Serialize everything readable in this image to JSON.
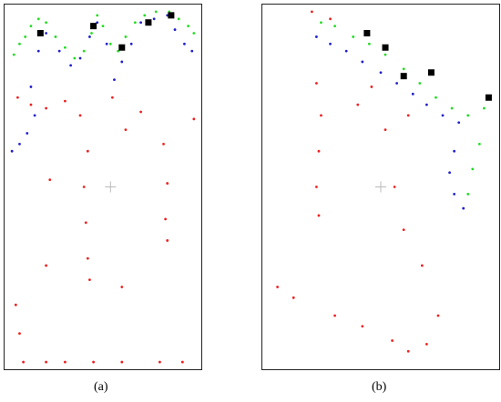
{
  "chart_data": [
    {
      "type": "scatter",
      "panel_label": "(a)",
      "grid": false,
      "legend": "none",
      "colors": {
        "green": "#22dd22",
        "blue": "#2222cc",
        "red": "#ee2222",
        "marker": "#000000",
        "center": "#bbbbbb"
      },
      "series": [
        {
          "color": "green",
          "values": [
            {
              "x": 0.03,
              "y": 0.87
            },
            {
              "x": 0.06,
              "y": 0.9
            },
            {
              "x": 0.09,
              "y": 0.92
            },
            {
              "x": 0.12,
              "y": 0.95
            },
            {
              "x": 0.16,
              "y": 0.97
            },
            {
              "x": 0.2,
              "y": 0.96
            },
            {
              "x": 0.25,
              "y": 0.92
            },
            {
              "x": 0.3,
              "y": 0.89
            },
            {
              "x": 0.35,
              "y": 0.86
            },
            {
              "x": 0.4,
              "y": 0.88
            },
            {
              "x": 0.44,
              "y": 0.93
            },
            {
              "x": 0.47,
              "y": 0.98
            },
            {
              "x": 0.5,
              "y": 0.95
            },
            {
              "x": 0.54,
              "y": 0.9
            },
            {
              "x": 0.58,
              "y": 0.88
            },
            {
              "x": 0.62,
              "y": 0.92
            },
            {
              "x": 0.67,
              "y": 0.96
            },
            {
              "x": 0.72,
              "y": 0.98
            },
            {
              "x": 0.78,
              "y": 0.99
            },
            {
              "x": 0.85,
              "y": 0.99
            },
            {
              "x": 0.9,
              "y": 0.97
            },
            {
              "x": 0.95,
              "y": 0.95
            },
            {
              "x": 0.98,
              "y": 0.93
            }
          ]
        },
        {
          "color": "blue",
          "values": [
            {
              "x": 0.02,
              "y": 0.6
            },
            {
              "x": 0.06,
              "y": 0.62
            },
            {
              "x": 0.1,
              "y": 0.65
            },
            {
              "x": 0.14,
              "y": 0.7
            },
            {
              "x": 0.12,
              "y": 0.78
            },
            {
              "x": 0.16,
              "y": 0.88
            },
            {
              "x": 0.2,
              "y": 0.93
            },
            {
              "x": 0.27,
              "y": 0.88
            },
            {
              "x": 0.33,
              "y": 0.84
            },
            {
              "x": 0.38,
              "y": 0.86
            },
            {
              "x": 0.43,
              "y": 0.92
            },
            {
              "x": 0.47,
              "y": 0.96
            },
            {
              "x": 0.52,
              "y": 0.9
            },
            {
              "x": 0.56,
              "y": 0.8
            },
            {
              "x": 0.6,
              "y": 0.85
            },
            {
              "x": 0.65,
              "y": 0.9
            },
            {
              "x": 0.7,
              "y": 0.96
            },
            {
              "x": 0.77,
              "y": 0.97
            },
            {
              "x": 0.84,
              "y": 0.98
            },
            {
              "x": 0.88,
              "y": 0.94
            },
            {
              "x": 0.93,
              "y": 0.9
            },
            {
              "x": 0.97,
              "y": 0.88
            }
          ]
        },
        {
          "color": "red",
          "values": [
            {
              "x": 0.05,
              "y": 0.75
            },
            {
              "x": 0.12,
              "y": 0.73
            },
            {
              "x": 0.2,
              "y": 0.72
            },
            {
              "x": 0.3,
              "y": 0.74
            },
            {
              "x": 0.38,
              "y": 0.7
            },
            {
              "x": 0.42,
              "y": 0.6
            },
            {
              "x": 0.4,
              "y": 0.5
            },
            {
              "x": 0.41,
              "y": 0.4
            },
            {
              "x": 0.42,
              "y": 0.3
            },
            {
              "x": 0.43,
              "y": 0.24
            },
            {
              "x": 0.55,
              "y": 0.75
            },
            {
              "x": 0.62,
              "y": 0.66
            },
            {
              "x": 0.7,
              "y": 0.71
            },
            {
              "x": 0.82,
              "y": 0.62
            },
            {
              "x": 0.84,
              "y": 0.51
            },
            {
              "x": 0.83,
              "y": 0.41
            },
            {
              "x": 0.84,
              "y": 0.35
            },
            {
              "x": 0.22,
              "y": 0.52
            },
            {
              "x": 0.2,
              "y": 0.28
            },
            {
              "x": 0.6,
              "y": 0.22
            },
            {
              "x": 0.04,
              "y": 0.17
            },
            {
              "x": 0.06,
              "y": 0.09
            },
            {
              "x": 0.08,
              "y": 0.01
            },
            {
              "x": 0.2,
              "y": 0.01
            },
            {
              "x": 0.3,
              "y": 0.01
            },
            {
              "x": 0.45,
              "y": 0.01
            },
            {
              "x": 0.6,
              "y": 0.01
            },
            {
              "x": 0.8,
              "y": 0.01
            },
            {
              "x": 0.92,
              "y": 0.01
            },
            {
              "x": 0.98,
              "y": 0.69
            }
          ]
        }
      ],
      "markers": [
        {
          "x": 0.17,
          "y": 0.93
        },
        {
          "x": 0.45,
          "y": 0.95
        },
        {
          "x": 0.6,
          "y": 0.89
        },
        {
          "x": 0.74,
          "y": 0.96
        },
        {
          "x": 0.86,
          "y": 0.98
        }
      ],
      "center": {
        "x": 0.54,
        "y": 0.5
      }
    },
    {
      "type": "scatter",
      "panel_label": "(b)",
      "grid": false,
      "legend": "none",
      "colors": {
        "green": "#22dd22",
        "blue": "#2222cc",
        "red": "#ee2222",
        "marker": "#000000",
        "center": "#bbbbbb"
      },
      "series": [
        {
          "color": "green",
          "values": [
            {
              "x": 0.24,
              "y": 0.96
            },
            {
              "x": 0.3,
              "y": 0.95
            },
            {
              "x": 0.38,
              "y": 0.92
            },
            {
              "x": 0.45,
              "y": 0.9
            },
            {
              "x": 0.52,
              "y": 0.87
            },
            {
              "x": 0.6,
              "y": 0.83
            },
            {
              "x": 0.67,
              "y": 0.79
            },
            {
              "x": 0.74,
              "y": 0.75
            },
            {
              "x": 0.81,
              "y": 0.72
            },
            {
              "x": 0.88,
              "y": 0.7
            },
            {
              "x": 0.95,
              "y": 0.72
            },
            {
              "x": 0.93,
              "y": 0.62
            },
            {
              "x": 0.9,
              "y": 0.55
            },
            {
              "x": 0.88,
              "y": 0.48
            }
          ]
        },
        {
          "color": "blue",
          "values": [
            {
              "x": 0.22,
              "y": 0.92
            },
            {
              "x": 0.28,
              "y": 0.9
            },
            {
              "x": 0.35,
              "y": 0.88
            },
            {
              "x": 0.42,
              "y": 0.85
            },
            {
              "x": 0.5,
              "y": 0.82
            },
            {
              "x": 0.57,
              "y": 0.79
            },
            {
              "x": 0.64,
              "y": 0.76
            },
            {
              "x": 0.7,
              "y": 0.73
            },
            {
              "x": 0.77,
              "y": 0.7
            },
            {
              "x": 0.84,
              "y": 0.68
            },
            {
              "x": 0.82,
              "y": 0.6
            },
            {
              "x": 0.8,
              "y": 0.54
            },
            {
              "x": 0.82,
              "y": 0.48
            },
            {
              "x": 0.86,
              "y": 0.44
            }
          ]
        },
        {
          "color": "red",
          "values": [
            {
              "x": 0.22,
              "y": 0.79
            },
            {
              "x": 0.24,
              "y": 0.7
            },
            {
              "x": 0.23,
              "y": 0.6
            },
            {
              "x": 0.22,
              "y": 0.5
            },
            {
              "x": 0.23,
              "y": 0.42
            },
            {
              "x": 0.05,
              "y": 0.22
            },
            {
              "x": 0.12,
              "y": 0.19
            },
            {
              "x": 0.3,
              "y": 0.14
            },
            {
              "x": 0.42,
              "y": 0.11
            },
            {
              "x": 0.55,
              "y": 0.07
            },
            {
              "x": 0.62,
              "y": 0.04
            },
            {
              "x": 0.7,
              "y": 0.06
            },
            {
              "x": 0.75,
              "y": 0.14
            },
            {
              "x": 0.68,
              "y": 0.28
            },
            {
              "x": 0.6,
              "y": 0.38
            },
            {
              "x": 0.56,
              "y": 0.5
            },
            {
              "x": 0.4,
              "y": 0.73
            },
            {
              "x": 0.52,
              "y": 0.66
            },
            {
              "x": 0.46,
              "y": 0.78
            },
            {
              "x": 0.62,
              "y": 0.7
            },
            {
              "x": 0.2,
              "y": 0.99
            },
            {
              "x": 0.28,
              "y": 0.97
            }
          ]
        }
      ],
      "markers": [
        {
          "x": 0.44,
          "y": 0.93
        },
        {
          "x": 0.52,
          "y": 0.89
        },
        {
          "x": 0.6,
          "y": 0.81
        },
        {
          "x": 0.72,
          "y": 0.82
        },
        {
          "x": 0.97,
          "y": 0.75
        }
      ],
      "center": {
        "x": 0.5,
        "y": 0.5
      }
    }
  ]
}
